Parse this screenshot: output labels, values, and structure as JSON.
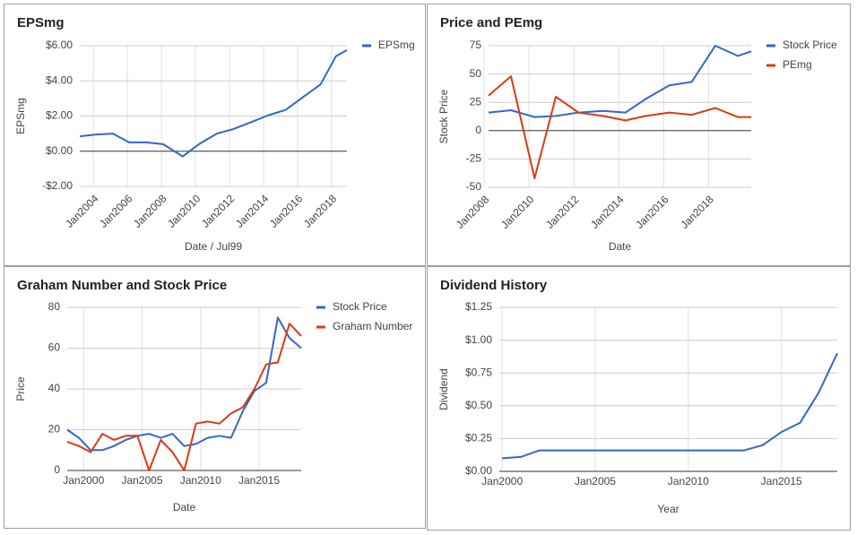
{
  "chart_data": [
    {
      "type": "line",
      "title": "EPSmg",
      "x_label": "Date / Jul99",
      "y_label": "EPSmg",
      "x": [
        2003.2,
        2004.15,
        2005.15,
        2006.1,
        2007.1,
        2008.1,
        2009.25,
        2010.2,
        2011.25,
        2012.2,
        2013.25,
        2014.3,
        2015.3,
        2016.35,
        2017.35,
        2018.25,
        2018.9
      ],
      "series": [
        {
          "name": "EPSmg",
          "color": "#3366cc",
          "values": [
            0.85,
            0.95,
            1.0,
            0.5,
            0.5,
            0.4,
            -0.3,
            0.4,
            1.0,
            1.25,
            1.65,
            2.05,
            2.35,
            3.1,
            3.8,
            5.4,
            5.75
          ]
        }
      ],
      "xlim": [
        2003.2,
        2018.9
      ],
      "xticks": [
        {
          "value": 2004,
          "label": "Jan2004"
        },
        {
          "value": 2006,
          "label": "Jan2006"
        },
        {
          "value": 2008,
          "label": "Jan2008"
        },
        {
          "value": 2010,
          "label": "Jan2010"
        },
        {
          "value": 2012,
          "label": "Jan2012"
        },
        {
          "value": 2014,
          "label": "Jan2014"
        },
        {
          "value": 2016,
          "label": "Jan2016"
        },
        {
          "value": 2018,
          "label": "Jan2018"
        }
      ],
      "ylim": [
        -2,
        6
      ],
      "yticks": [
        {
          "value": -2,
          "label": "-$2.00"
        },
        {
          "value": 0,
          "label": "$0.00"
        },
        {
          "value": 2,
          "label": "$2.00"
        },
        {
          "value": 4,
          "label": "$4.00"
        },
        {
          "value": 6,
          "label": "$6.00"
        }
      ],
      "grid": true,
      "legend": "right"
    },
    {
      "type": "line",
      "title": "Price and PEmg",
      "x_label": "Date",
      "y_label": "Stock Price",
      "x": [
        2008.2,
        2009.2,
        2010.25,
        2011.2,
        2012.2,
        2013.3,
        2014.3,
        2015.2,
        2016.25,
        2017.25,
        2018.3,
        2019.3,
        2019.9
      ],
      "series": [
        {
          "name": "Stock Price",
          "color": "#3366cc",
          "values": [
            16,
            18,
            12,
            13,
            16,
            17.5,
            16,
            28,
            40,
            43,
            75,
            66,
            70
          ]
        },
        {
          "name": "PEmg",
          "color": "#dc3912",
          "values": [
            31,
            48,
            -42,
            30,
            16,
            13,
            9,
            13,
            16,
            14,
            20,
            12,
            12
          ]
        }
      ],
      "xlim": [
        2008.2,
        2019.9
      ],
      "xticks": [
        {
          "value": 2008,
          "label": "Jan2008"
        },
        {
          "value": 2010,
          "label": "Jan2010"
        },
        {
          "value": 2012,
          "label": "Jan2012"
        },
        {
          "value": 2014,
          "label": "Jan2014"
        },
        {
          "value": 2016,
          "label": "Jan2016"
        },
        {
          "value": 2018,
          "label": "Jan2018"
        }
      ],
      "ylim": [
        -50,
        75
      ],
      "yticks": [
        -50,
        -25,
        0,
        25,
        50,
        75
      ],
      "grid": true,
      "legend": "right"
    },
    {
      "type": "line",
      "title": "Graham Number and Stock Price",
      "x_label": "Date",
      "y_label": "Price",
      "x": [
        1998.6,
        1999.6,
        2000.6,
        2001.6,
        2002.6,
        2003.6,
        2004.6,
        2005.6,
        2006.6,
        2007.6,
        2008.6,
        2009.6,
        2010.6,
        2011.6,
        2012.6,
        2013.6,
        2014.6,
        2015.6,
        2016.6,
        2017.6,
        2018.6
      ],
      "series": [
        {
          "name": "Stock Price",
          "color": "#3366cc",
          "values": [
            20,
            16,
            10,
            10,
            12,
            15,
            17,
            18,
            16,
            18,
            12,
            13,
            16,
            17,
            16,
            29,
            39,
            43,
            75,
            65,
            60
          ]
        },
        {
          "name": "Graham Number",
          "color": "#dc3912",
          "values": [
            14,
            12,
            9,
            18,
            15,
            17,
            17,
            0,
            15,
            9,
            0,
            23,
            24,
            23,
            28,
            31,
            40,
            52,
            53,
            72,
            66
          ]
        }
      ],
      "xlim": [
        1998.6,
        2018.6
      ],
      "xticks": [
        {
          "value": 2000,
          "label": "Jan2000"
        },
        {
          "value": 2005,
          "label": "Jan2005"
        },
        {
          "value": 2010,
          "label": "Jan2010"
        },
        {
          "value": 2015,
          "label": "Jan2015"
        }
      ],
      "ylim": [
        0,
        80
      ],
      "yticks": [
        0,
        20,
        40,
        60,
        80
      ],
      "grid": true,
      "legend": "right"
    },
    {
      "type": "line",
      "title": "Dividend History",
      "x_label": "Year",
      "y_label": "Dividend",
      "x": [
        2000,
        2001,
        2002,
        2003,
        2004,
        2005,
        2006,
        2007,
        2008,
        2009,
        2010,
        2011,
        2012,
        2013,
        2014,
        2015,
        2016,
        2017,
        2018
      ],
      "values": [
        0.1,
        0.11,
        0.16,
        0.16,
        0.16,
        0.16,
        0.16,
        0.16,
        0.16,
        0.16,
        0.16,
        0.16,
        0.16,
        0.16,
        0.2,
        0.3,
        0.37,
        0.6,
        0.9
      ],
      "color": "#3366cc",
      "xlim": [
        1999.85,
        2018
      ],
      "xticks": [
        {
          "value": 2000,
          "label": "Jan2000"
        },
        {
          "value": 2005,
          "label": "Jan2005"
        },
        {
          "value": 2010,
          "label": "Jan2010"
        },
        {
          "value": 2015,
          "label": "Jan2015"
        }
      ],
      "ylim": [
        0,
        1.25
      ],
      "yticks": [
        {
          "value": 0,
          "label": "$0.00"
        },
        {
          "value": 0.25,
          "label": "$0.25"
        },
        {
          "value": 0.5,
          "label": "$0.50"
        },
        {
          "value": 0.75,
          "label": "$0.75"
        },
        {
          "value": 1,
          "label": "$1.00"
        },
        {
          "value": 1.25,
          "label": "$1.25"
        }
      ],
      "grid": true
    }
  ]
}
